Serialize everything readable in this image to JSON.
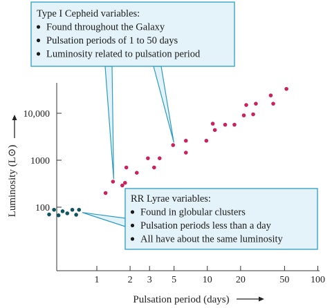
{
  "chart_data": {
    "type": "scatter",
    "xlabel": "Pulsation period (days)",
    "ylabel": "Luminosity (L⊙)",
    "x_scale": "log",
    "y_scale": "log",
    "xlim": [
      0.3,
      100
    ],
    "ylim": [
      10,
      50000
    ],
    "x_ticks": [
      1,
      2,
      3,
      5,
      10,
      20,
      50,
      100
    ],
    "y_ticks": [
      100,
      1000,
      10000
    ],
    "y_tick_labels": [
      "100",
      "1000",
      "10,000"
    ],
    "grid": false,
    "series": [
      {
        "color": "#c8245a",
        "points": [
          [
            1.2,
            200
          ],
          [
            1.4,
            350
          ],
          [
            1.7,
            290
          ],
          [
            1.8,
            330
          ],
          [
            1.85,
            700
          ],
          [
            2.3,
            540
          ],
          [
            2.9,
            1100
          ],
          [
            3.3,
            700
          ],
          [
            3.7,
            1100
          ],
          [
            4.9,
            2100
          ],
          [
            6.4,
            2600
          ],
          [
            6.4,
            1450
          ],
          [
            9.8,
            2600
          ],
          [
            11.2,
            6000
          ],
          [
            11.7,
            4400
          ],
          [
            14.5,
            5700
          ],
          [
            17.6,
            5700
          ],
          [
            21.4,
            9000
          ],
          [
            22.5,
            15000
          ],
          [
            26,
            9500
          ],
          [
            27.5,
            16000
          ],
          [
            37.5,
            24000
          ],
          [
            39.5,
            16000
          ],
          [
            52,
            33000
          ]
        ]
      },
      {
        "color": "#0f5560",
        "points": [
          [
            0.37,
            70
          ],
          [
            0.41,
            88
          ],
          [
            0.45,
            67
          ],
          [
            0.49,
            82
          ],
          [
            0.54,
            74
          ],
          [
            0.6,
            88
          ],
          [
            0.65,
            69
          ],
          [
            0.69,
            88
          ]
        ]
      }
    ],
    "annotations": [
      {
        "lines": [
          "Type I Cepheid variables:",
          "Found throughout the Galaxy",
          "Pulsation periods of 1 to 50 days",
          "Luminosity related to pulsation period"
        ],
        "bullets": [
          false,
          true,
          true,
          true
        ],
        "targets": [
          [
            1.4,
            350
          ],
          [
            4.9,
            2100
          ]
        ]
      },
      {
        "lines": [
          "RR Lyrae variables:",
          "Found in globular clusters",
          "Pulsation periods less than a day",
          "All have about the same luminosity"
        ],
        "bullets": [
          false,
          true,
          true,
          true
        ],
        "targets": [
          [
            0.69,
            88
          ]
        ]
      }
    ],
    "colors": {
      "callout_fill": "#e4f3f9",
      "callout_stroke": "#2a9bc4",
      "axis": "#333333"
    }
  }
}
